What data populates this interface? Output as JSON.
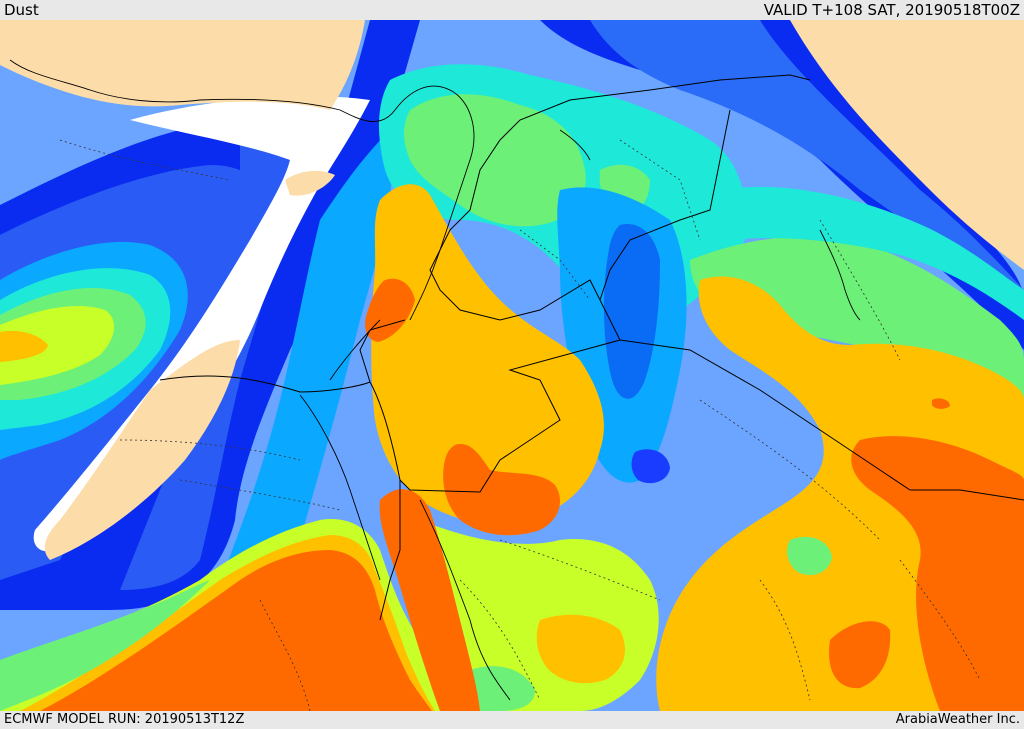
{
  "header": {
    "title": "Dust",
    "valid_time": "VALID T+108 SAT, 20190518T00Z"
  },
  "footer": {
    "model_run": "ECMWF MODEL RUN: 20190513T12Z",
    "credit": "ArabiaWeather Inc."
  },
  "map": {
    "field": "dust",
    "colors": {
      "land": "#fcdca8",
      "cloud": "#ffffff",
      "dark_blue": "#0a2cf0",
      "blue": "#2a5cf5",
      "sky_blue": "#0aa8ff",
      "cyan": "#1ee8d8",
      "green": "#6cf078",
      "yellow_green": "#c8ff28",
      "gold": "#ffc000",
      "orange": "#ff6a00"
    }
  }
}
